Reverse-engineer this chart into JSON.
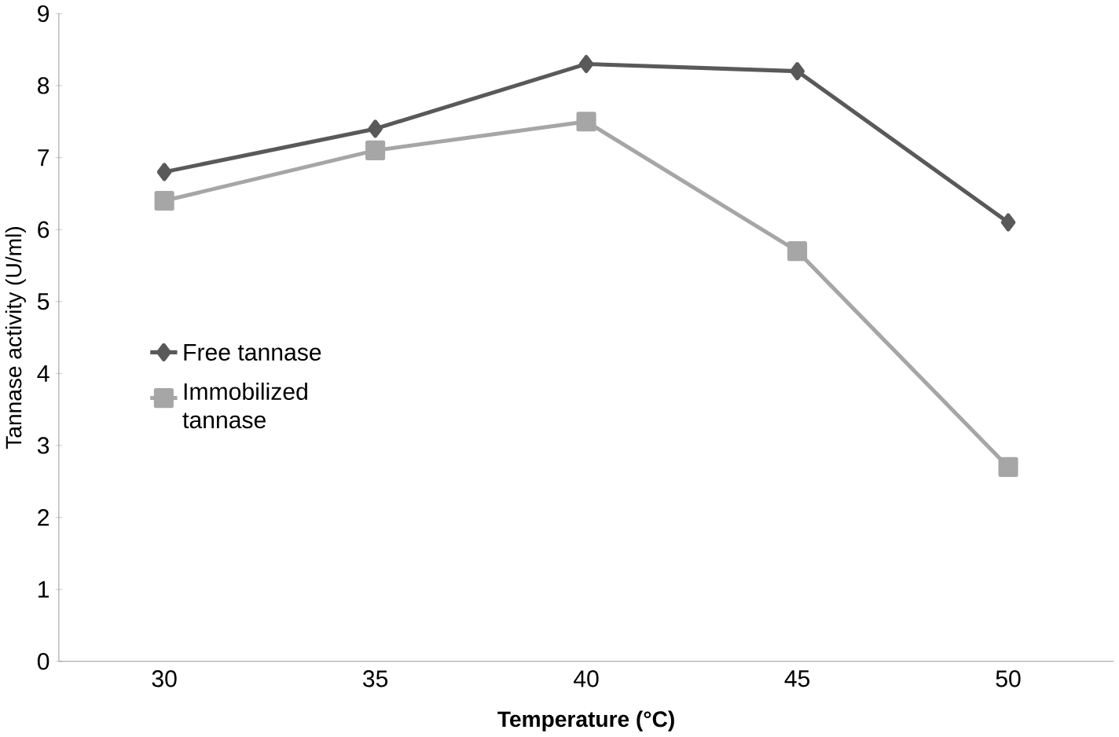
{
  "chart_data": {
    "type": "line",
    "xlabel": "Temperature (°C)",
    "ylabel": "Tannase activity (U/ml)",
    "categories": [
      "30",
      "35",
      "40",
      "45",
      "50"
    ],
    "series": [
      {
        "name": "Free tannase",
        "color": "#595959",
        "marker": "diamond",
        "values": [
          6.8,
          7.4,
          8.3,
          8.2,
          6.1
        ]
      },
      {
        "name": "Immobilized tannase",
        "color": "#a6a6a6",
        "marker": "square",
        "values": [
          6.4,
          7.1,
          7.5,
          5.7,
          2.7
        ]
      }
    ],
    "ylim": [
      0,
      9
    ],
    "yticks": [
      0,
      1,
      2,
      3,
      4,
      5,
      6,
      7,
      8,
      9
    ],
    "grid": false,
    "legend": "left",
    "line_style": "solid"
  }
}
